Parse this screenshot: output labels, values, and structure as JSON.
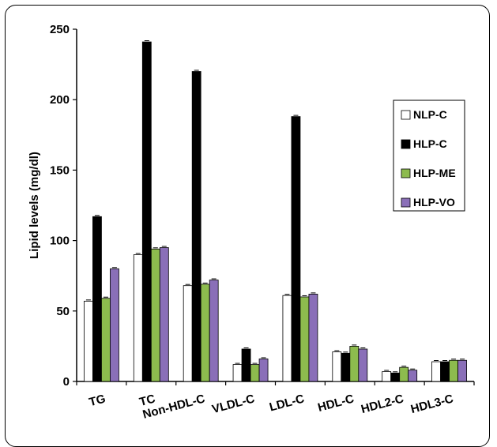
{
  "chart_data": {
    "type": "bar",
    "title": "",
    "xlabel": "",
    "ylabel": "Lipid levels (mg/dl)",
    "ylim": [
      0,
      250
    ],
    "yticks": [
      "0",
      "50",
      "100",
      "150",
      "200",
      "250"
    ],
    "grid": false,
    "legend_position": "right",
    "categories": [
      "TG",
      "TC",
      "Non-HDL-C",
      "VLDL-C",
      "LDL-C",
      "HDL-C",
      "HDL2-C",
      "HDL3-C"
    ],
    "series": [
      {
        "name": "NLP-C",
        "color": "#ffffff",
        "values": [
          57,
          90,
          68,
          12,
          61,
          21,
          7,
          14
        ]
      },
      {
        "name": "HLP-C",
        "color": "#000000",
        "values": [
          117,
          241,
          220,
          23,
          188,
          20,
          6,
          14
        ]
      },
      {
        "name": "HLP-ME",
        "color": "#8dbb4e",
        "values": [
          59,
          94,
          69,
          12,
          60,
          25,
          10,
          15
        ]
      },
      {
        "name": "HLP-VO",
        "color": "#8a6fb8",
        "values": [
          80,
          95,
          72,
          16,
          62,
          23,
          8,
          15
        ]
      }
    ]
  }
}
